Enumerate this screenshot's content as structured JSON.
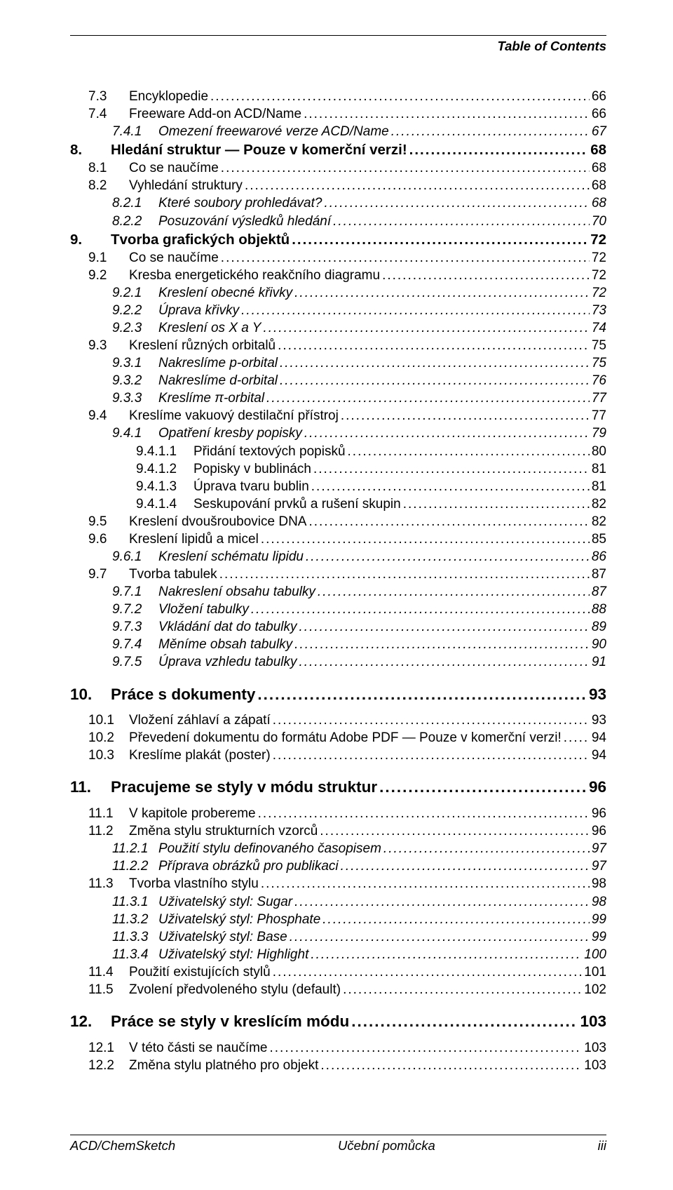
{
  "header": {
    "title": "Table of Contents"
  },
  "footer": {
    "left": "ACD/ChemSketch",
    "center": "Učební pomůcka",
    "right": "iii"
  },
  "toc": [
    {
      "level": "lvl2",
      "num": "7.3",
      "title": "Encyklopedie",
      "page": "66"
    },
    {
      "level": "lvl2",
      "num": "7.4",
      "title": "Freeware Add-on ACD/Name",
      "page": "66"
    },
    {
      "level": "lvl3",
      "num": "7.4.1",
      "title": "Omezení freewarové verze ACD/Name",
      "page": "67"
    },
    {
      "level": "lvl1",
      "num": "8.",
      "title": "Hledání struktur — Pouze v komerční verzi!",
      "page": " 68"
    },
    {
      "level": "lvl2",
      "num": "8.1",
      "title": "Co se naučíme",
      "page": "68"
    },
    {
      "level": "lvl2",
      "num": "8.2",
      "title": "Vyhledání struktury",
      "page": "68"
    },
    {
      "level": "lvl3",
      "num": "8.2.1",
      "title": "Které soubory prohledávat?",
      "page": "68"
    },
    {
      "level": "lvl3",
      "num": "8.2.2",
      "title": "Posuzování výsledků hledání",
      "page": "70"
    },
    {
      "level": "lvl1",
      "num": "9.",
      "title": "Tvorba grafických objektů",
      "page": " 72"
    },
    {
      "level": "lvl2",
      "num": "9.1",
      "title": "Co se naučíme",
      "page": "72"
    },
    {
      "level": "lvl2",
      "num": "9.2",
      "title": "Kresba energetického reakčního diagramu",
      "page": "72"
    },
    {
      "level": "lvl3",
      "num": "9.2.1",
      "title": "Kreslení obecné křivky",
      "page": "72"
    },
    {
      "level": "lvl3",
      "num": "9.2.2",
      "title": "Úprava křivky",
      "page": "73"
    },
    {
      "level": "lvl3",
      "num": "9.2.3",
      "title": "Kreslení os X a Y",
      "page": "74"
    },
    {
      "level": "lvl2",
      "num": "9.3",
      "title": "Kreslení různých orbitalů",
      "page": "75"
    },
    {
      "level": "lvl3",
      "num": "9.3.1",
      "title": "Nakreslíme p-orbital",
      "page": "75"
    },
    {
      "level": "lvl3",
      "num": "9.3.2",
      "title": "Nakreslíme d-orbital",
      "page": "76"
    },
    {
      "level": "lvl3",
      "num": "9.3.3",
      "title": "Kreslíme π-orbital",
      "page": "77"
    },
    {
      "level": "lvl2",
      "num": "9.4",
      "title": "Kreslíme vakuový destilační přístroj",
      "page": "77"
    },
    {
      "level": "lvl3",
      "num": "9.4.1",
      "title": "Opatření kresby popisky",
      "page": "79"
    },
    {
      "level": "lvl4",
      "num": "9.4.1.1",
      "title": "Přidání textových popisků",
      "page": "80"
    },
    {
      "level": "lvl4",
      "num": "9.4.1.2",
      "title": "Popisky v bublinách",
      "page": "81"
    },
    {
      "level": "lvl4",
      "num": "9.4.1.3",
      "title": "Úprava tvaru bublin",
      "page": "81"
    },
    {
      "level": "lvl4",
      "num": "9.4.1.4",
      "title": "Seskupování prvků a rušení skupin",
      "page": "82"
    },
    {
      "level": "lvl2",
      "num": "9.5",
      "title": "Kreslení dvoušroubovice DNA",
      "page": "82"
    },
    {
      "level": "lvl2",
      "num": "9.6",
      "title": "Kreslení lipidů a micel",
      "page": "85"
    },
    {
      "level": "lvl3",
      "num": "9.6.1",
      "title": "Kreslení schématu lipidu",
      "page": "86"
    },
    {
      "level": "lvl2",
      "num": "9.7",
      "title": "Tvorba tabulek",
      "page": "87"
    },
    {
      "level": "lvl3",
      "num": "9.7.1",
      "title": "Nakreslení obsahu tabulky",
      "page": "87"
    },
    {
      "level": "lvl3",
      "num": "9.7.2",
      "title": "Vložení tabulky",
      "page": "88"
    },
    {
      "level": "lvl3",
      "num": "9.7.3",
      "title": "Vkládání dat do tabulky",
      "page": "89"
    },
    {
      "level": "lvl3",
      "num": "9.7.4",
      "title": "Měníme obsah tabulky",
      "page": "90"
    },
    {
      "level": "lvl3",
      "num": "9.7.5",
      "title": "Úprava vzhledu tabulky",
      "page": "91"
    },
    {
      "level": "chapter",
      "num": "10.",
      "title": "Práce s dokumenty",
      "page": " 93"
    },
    {
      "level": "lvl2",
      "num": "10.1",
      "title": "Vložení záhlaví a zápatí",
      "page": "93"
    },
    {
      "level": "lvl2",
      "num": "10.2",
      "title": "Převedení dokumentu do formátu Adobe PDF — Pouze v komerční verzi!",
      "page": "94"
    },
    {
      "level": "lvl2",
      "num": "10.3",
      "title": "Kreslíme plakát (poster)",
      "page": "94"
    },
    {
      "level": "chapter",
      "num": "11.",
      "title": "Pracujeme se styly v módu struktur",
      "page": " 96"
    },
    {
      "level": "lvl2",
      "num": "11.1",
      "title": "V kapitole probereme",
      "page": "96"
    },
    {
      "level": "lvl2",
      "num": "11.2",
      "title": "Změna stylu strukturních vzorců",
      "page": "96"
    },
    {
      "level": "lvl3",
      "num": "11.2.1",
      "title": "Použití stylu definovaného časopisem",
      "page": "97"
    },
    {
      "level": "lvl3",
      "num": "11.2.2",
      "title": "Příprava obrázků pro publikaci",
      "page": "97"
    },
    {
      "level": "lvl2",
      "num": "11.3",
      "title": "Tvorba vlastního stylu",
      "page": "98"
    },
    {
      "level": "lvl3",
      "num": "11.3.1",
      "title": "Uživatelský styl:  Sugar",
      "page": "98"
    },
    {
      "level": "lvl3",
      "num": "11.3.2",
      "title": "Uživatelský styl: Phosphate",
      "page": "99"
    },
    {
      "level": "lvl3",
      "num": "11.3.3",
      "title": "Uživatelský styl: Base",
      "page": "99"
    },
    {
      "level": "lvl3",
      "num": "11.3.4",
      "title": "Uživatelský styl: Highlight",
      "page": "100"
    },
    {
      "level": "lvl2",
      "num": "11.4",
      "title": "Použití existujících stylů",
      "page": "101"
    },
    {
      "level": "lvl2",
      "num": "11.5",
      "title": "Zvolení předvoleného stylu (default)",
      "page": "102"
    },
    {
      "level": "chapter",
      "num": "12.",
      "title": "Práce se styly v kreslícím módu",
      "page": " 103"
    },
    {
      "level": "lvl2",
      "num": "12.1",
      "title": "V této části se naučíme",
      "page": "103"
    },
    {
      "level": "lvl2",
      "num": "12.2",
      "title": "Změna stylu platného pro objekt",
      "page": "103"
    }
  ]
}
